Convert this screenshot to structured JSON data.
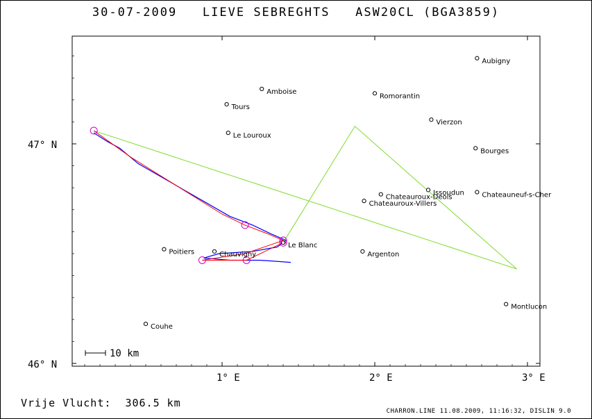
{
  "header": {
    "title": "30-07-2009   LIEVE SEBREGHTS   ASW20CL (BGA3859)"
  },
  "footer": {
    "distance_label": "Vrije Vlucht:  306.5 km",
    "imprint": "CHARRON.LINE 11.08.2009, 11:16:32, DISLIN 9.0"
  },
  "map": {
    "x_range_lon": [
      0.0,
      3.05
    ],
    "y_range_lat": [
      46.0,
      47.45
    ],
    "x_ticks": [
      {
        "lon": 1,
        "label": "1° E"
      },
      {
        "lon": 2,
        "label": "2° E"
      },
      {
        "lon": 3,
        "label": "3° E"
      }
    ],
    "y_ticks": [
      {
        "lat": 46,
        "label": "46° N"
      },
      {
        "lat": 47,
        "label": "47° N"
      }
    ],
    "scale_bar_label": "10 km",
    "colors": {
      "task_line": "#7fdc2a",
      "track": "#0000ff",
      "track_alt": "#ff0000",
      "turnpoint": "#d000d0",
      "city": "#000000"
    },
    "cities": [
      {
        "name": "Aubigny",
        "lon": 2.67,
        "lat": 47.39
      },
      {
        "name": "Amboise",
        "lon": 1.26,
        "lat": 47.25
      },
      {
        "name": "Romorantin",
        "lon": 2.0,
        "lat": 47.23
      },
      {
        "name": "Tours",
        "lon": 1.03,
        "lat": 47.18
      },
      {
        "name": "Vierzon",
        "lon": 2.37,
        "lat": 47.11
      },
      {
        "name": "Le Louroux",
        "lon": 1.04,
        "lat": 47.05
      },
      {
        "name": "Bourges",
        "lon": 2.66,
        "lat": 46.98
      },
      {
        "name": "Issoudun",
        "lon": 2.35,
        "lat": 46.79
      },
      {
        "name": "Chateauroux-Deols",
        "lon": 2.04,
        "lat": 46.77
      },
      {
        "name": "Chateauneuf-s-Cher",
        "lon": 2.67,
        "lat": 46.78
      },
      {
        "name": "Chateauroux-Villers",
        "lon": 1.93,
        "lat": 46.74
      },
      {
        "name": "Le Blanc",
        "lon": 1.4,
        "lat": 46.55
      },
      {
        "name": "Poitiers",
        "lon": 0.62,
        "lat": 46.52
      },
      {
        "name": "Chauvigny",
        "lon": 0.95,
        "lat": 46.51
      },
      {
        "name": "Argenton",
        "lon": 1.92,
        "lat": 46.51
      },
      {
        "name": "Montlucon",
        "lon": 2.86,
        "lat": 46.27
      },
      {
        "name": "Couhe",
        "lon": 0.5,
        "lat": 46.18
      }
    ],
    "task_line": [
      {
        "lon": 0.16,
        "lat": 47.06
      },
      {
        "lon": 2.93,
        "lat": 46.43
      },
      {
        "lon": 1.87,
        "lat": 47.08
      },
      {
        "lon": 1.4,
        "lat": 46.55
      }
    ],
    "turnpoints": [
      {
        "lon": 0.16,
        "lat": 47.06
      },
      {
        "lon": 1.15,
        "lat": 46.63
      },
      {
        "lon": 1.4,
        "lat": 46.56
      },
      {
        "lon": 0.87,
        "lat": 46.47
      },
      {
        "lon": 1.16,
        "lat": 46.47
      },
      {
        "lon": 1.4,
        "lat": 46.55
      }
    ],
    "track_red": [
      {
        "lon": 0.16,
        "lat": 47.06
      },
      {
        "lon": 0.4,
        "lat": 46.94
      },
      {
        "lon": 0.7,
        "lat": 46.81
      },
      {
        "lon": 1.0,
        "lat": 46.68
      },
      {
        "lon": 1.15,
        "lat": 46.63
      },
      {
        "lon": 1.3,
        "lat": 46.59
      },
      {
        "lon": 1.4,
        "lat": 46.56
      },
      {
        "lon": 1.15,
        "lat": 46.5
      },
      {
        "lon": 0.87,
        "lat": 46.47
      },
      {
        "lon": 1.16,
        "lat": 46.47
      },
      {
        "lon": 1.4,
        "lat": 46.55
      }
    ],
    "track_blue": [
      {
        "lon": 0.16,
        "lat": 47.05
      },
      {
        "lon": 0.25,
        "lat": 47.01
      },
      {
        "lon": 0.33,
        "lat": 46.98
      },
      {
        "lon": 0.45,
        "lat": 46.91
      },
      {
        "lon": 0.6,
        "lat": 46.85
      },
      {
        "lon": 0.75,
        "lat": 46.79
      },
      {
        "lon": 0.9,
        "lat": 46.73
      },
      {
        "lon": 1.05,
        "lat": 46.67
      },
      {
        "lon": 1.2,
        "lat": 46.63
      },
      {
        "lon": 1.32,
        "lat": 46.59
      },
      {
        "lon": 1.42,
        "lat": 46.56
      },
      {
        "lon": 1.36,
        "lat": 46.53
      },
      {
        "lon": 1.2,
        "lat": 46.51
      },
      {
        "lon": 0.98,
        "lat": 46.5
      },
      {
        "lon": 0.88,
        "lat": 46.48
      },
      {
        "lon": 1.05,
        "lat": 46.47
      },
      {
        "lon": 1.25,
        "lat": 46.47
      },
      {
        "lon": 1.45,
        "lat": 46.46
      }
    ]
  }
}
